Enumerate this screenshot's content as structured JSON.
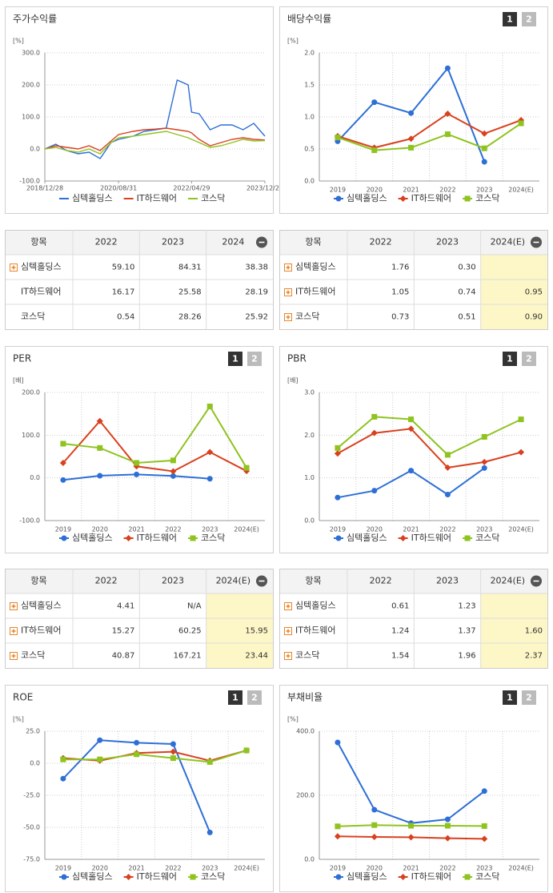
{
  "chart_data": [
    {
      "type": "line",
      "title": "주가수익률",
      "unit": "[%]",
      "x": [
        "2018/12/28",
        "2019/03/29",
        "2019/06/28",
        "2019/09/30",
        "2019/12/30",
        "2020/03/31",
        "2020/06/30",
        "2020/08/31",
        "2020/12/30",
        "2021/03/31",
        "2021/06/30",
        "2021/09/30",
        "2021/12/30",
        "2022/03/31",
        "2022/04/29",
        "2022/06/30",
        "2022/09/30",
        "2022/12/29",
        "2023/03/31",
        "2023/06/30",
        "2023/09/27",
        "2023/12/28"
      ],
      "xlim": [
        "2018/12/28",
        "2023/12/28"
      ],
      "xticks": [
        "2018/12/28",
        "2020/08/31",
        "2022/04/29",
        "2023/12/28"
      ],
      "ylim": [
        -100,
        300
      ],
      "yticks": [
        {
          "value": -100,
          "label": "-100.0"
        },
        {
          "value": 0,
          "label": "0.0"
        },
        {
          "value": 100,
          "label": "100.0"
        },
        {
          "value": 200,
          "label": "200.0"
        },
        {
          "value": 300,
          "label": "300.0"
        }
      ],
      "series": [
        {
          "name": "심텍홀딩스",
          "color": "#2e6fd6",
          "marker": "circle",
          "values": [
            0,
            15,
            -5,
            -15,
            -10,
            -30,
            20,
            30,
            40,
            55,
            60,
            65,
            215,
            200,
            115,
            110,
            60,
            75,
            75,
            60,
            80,
            40
          ]
        },
        {
          "name": "IT하드웨어",
          "color": "#d9411e",
          "marker": "diamond",
          "values": [
            0,
            10,
            5,
            0,
            10,
            -5,
            25,
            45,
            55,
            60,
            62,
            65,
            60,
            55,
            50,
            30,
            10,
            20,
            30,
            35,
            30,
            28
          ]
        },
        {
          "name": "코스닥",
          "color": "#8fc31f",
          "marker": "square",
          "values": [
            0,
            5,
            -5,
            -10,
            0,
            -15,
            20,
            35,
            40,
            45,
            50,
            55,
            45,
            35,
            30,
            20,
            5,
            10,
            20,
            30,
            25,
            26
          ]
        }
      ]
    },
    {
      "type": "line",
      "title": "배당수익률",
      "unit": "[%]",
      "pages": [
        "1",
        "2"
      ],
      "categories": [
        "2019",
        "2020",
        "2021",
        "2022",
        "2023",
        "2024(E)"
      ],
      "ylim": [
        0,
        2
      ],
      "yticks": [
        {
          "value": 0,
          "label": "0.0"
        },
        {
          "value": 0.5,
          "label": "0.5"
        },
        {
          "value": 1,
          "label": "1.0"
        },
        {
          "value": 1.5,
          "label": "1.5"
        },
        {
          "value": 2,
          "label": "2.0"
        }
      ],
      "series": [
        {
          "name": "심텍홀딩스",
          "color": "#2e6fd6",
          "marker": "circle",
          "values": [
            0.62,
            1.23,
            1.06,
            1.76,
            0.3,
            null
          ]
        },
        {
          "name": "IT하드웨어",
          "color": "#d9411e",
          "marker": "diamond",
          "values": [
            0.7,
            0.52,
            0.66,
            1.05,
            0.74,
            0.95
          ]
        },
        {
          "name": "코스닥",
          "color": "#8fc31f",
          "marker": "square",
          "values": [
            0.68,
            0.48,
            0.52,
            0.73,
            0.51,
            0.9
          ]
        }
      ]
    },
    {
      "type": "line",
      "title": "PER",
      "unit": "[배]",
      "pages": [
        "1",
        "2"
      ],
      "categories": [
        "2019",
        "2020",
        "2021",
        "2022",
        "2023",
        "2024(E)"
      ],
      "ylim": [
        -100,
        200
      ],
      "yticks": [
        {
          "value": -100,
          "label": "-100.0"
        },
        {
          "value": 0,
          "label": "0.0"
        },
        {
          "value": 100,
          "label": "100.0"
        },
        {
          "value": 200,
          "label": "200.0"
        }
      ],
      "series": [
        {
          "name": "심텍홀딩스",
          "color": "#2e6fd6",
          "marker": "circle",
          "values": [
            -5,
            5,
            8,
            4.41,
            -2,
            null
          ]
        },
        {
          "name": "IT하드웨어",
          "color": "#d9411e",
          "marker": "diamond",
          "values": [
            35,
            133,
            27,
            15.27,
            60.25,
            15.95
          ]
        },
        {
          "name": "코스닥",
          "color": "#8fc31f",
          "marker": "square",
          "values": [
            80,
            70,
            35,
            40.87,
            167.21,
            23.44
          ]
        }
      ]
    },
    {
      "type": "line",
      "title": "PBR",
      "unit": "[배]",
      "pages": [
        "1",
        "2"
      ],
      "categories": [
        "2019",
        "2020",
        "2021",
        "2022",
        "2023",
        "2024(E)"
      ],
      "ylim": [
        0,
        3
      ],
      "yticks": [
        {
          "value": 0,
          "label": "0.0"
        },
        {
          "value": 1,
          "label": "1.0"
        },
        {
          "value": 2,
          "label": "2.0"
        },
        {
          "value": 3,
          "label": "3.0"
        }
      ],
      "series": [
        {
          "name": "심텍홀딩스",
          "color": "#2e6fd6",
          "marker": "circle",
          "values": [
            0.54,
            0.7,
            1.17,
            0.61,
            1.23,
            null
          ]
        },
        {
          "name": "IT하드웨어",
          "color": "#d9411e",
          "marker": "diamond",
          "values": [
            1.57,
            2.05,
            2.15,
            1.24,
            1.37,
            1.6
          ]
        },
        {
          "name": "코스닥",
          "color": "#8fc31f",
          "marker": "square",
          "values": [
            1.7,
            2.43,
            2.37,
            1.54,
            1.96,
            2.37
          ]
        }
      ]
    },
    {
      "type": "line",
      "title": "ROE",
      "unit": "[%]",
      "pages": [
        "1",
        "2"
      ],
      "categories": [
        "2019",
        "2020",
        "2021",
        "2022",
        "2023",
        "2024(E)"
      ],
      "ylim": [
        -75,
        25
      ],
      "yticks": [
        {
          "value": -75,
          "label": "-75.0"
        },
        {
          "value": -50,
          "label": "-50.0"
        },
        {
          "value": -25,
          "label": "-25.0"
        },
        {
          "value": 0,
          "label": "0.0"
        },
        {
          "value": 25,
          "label": "25.0"
        }
      ],
      "series": [
        {
          "name": "심텍홀딩스",
          "color": "#2e6fd6",
          "marker": "circle",
          "values": [
            -12,
            18,
            16,
            15,
            -54,
            null
          ]
        },
        {
          "name": "IT하드웨어",
          "color": "#d9411e",
          "marker": "diamond",
          "values": [
            4,
            2,
            8,
            9,
            2,
            10
          ]
        },
        {
          "name": "코스닥",
          "color": "#8fc31f",
          "marker": "square",
          "values": [
            3,
            3,
            7,
            4,
            1,
            10
          ]
        }
      ]
    },
    {
      "type": "line",
      "title": "부채비율",
      "unit": "[%]",
      "pages": [
        "1",
        "2"
      ],
      "categories": [
        "2019",
        "2020",
        "2021",
        "2022",
        "2023",
        "2024(E)"
      ],
      "ylim": [
        0,
        400
      ],
      "yticks": [
        {
          "value": 0,
          "label": "0.0"
        },
        {
          "value": 200,
          "label": "200.0"
        },
        {
          "value": 400,
          "label": "400.0"
        }
      ],
      "series": [
        {
          "name": "심텍홀딩스",
          "color": "#2e6fd6",
          "marker": "circle",
          "values": [
            365,
            155,
            113,
            125,
            213,
            null
          ]
        },
        {
          "name": "IT하드웨어",
          "color": "#d9411e",
          "marker": "diamond",
          "values": [
            72,
            70,
            69,
            66,
            64,
            null
          ]
        },
        {
          "name": "코스닥",
          "color": "#8fc31f",
          "marker": "square",
          "values": [
            103,
            107,
            105,
            105,
            104,
            null
          ]
        }
      ]
    }
  ],
  "tables": [
    {
      "header": [
        "항목",
        "2022",
        "2023",
        "2024"
      ],
      "highlight_last": false,
      "rows": [
        {
          "name": "심텍홀딩스",
          "expandable": true,
          "values": [
            "59.10",
            "84.31",
            "38.38"
          ]
        },
        {
          "name": "IT하드웨어",
          "expandable": false,
          "values": [
            "16.17",
            "25.58",
            "28.19"
          ]
        },
        {
          "name": "코스닥",
          "expandable": false,
          "values": [
            "0.54",
            "28.26",
            "25.92"
          ]
        }
      ]
    },
    {
      "header": [
        "항목",
        "2022",
        "2023",
        "2024(E)"
      ],
      "highlight_last": true,
      "rows": [
        {
          "name": "심텍홀딩스",
          "expandable": true,
          "values": [
            "1.76",
            "0.30",
            null
          ]
        },
        {
          "name": "IT하드웨어",
          "expandable": true,
          "values": [
            "1.05",
            "0.74",
            "0.95"
          ]
        },
        {
          "name": "코스닥",
          "expandable": true,
          "values": [
            "0.73",
            "0.51",
            "0.90"
          ]
        }
      ]
    },
    {
      "header": [
        "항목",
        "2022",
        "2023",
        "2024(E)"
      ],
      "highlight_last": true,
      "rows": [
        {
          "name": "심텍홀딩스",
          "expandable": true,
          "values": [
            "4.41",
            "N/A",
            null
          ]
        },
        {
          "name": "IT하드웨어",
          "expandable": true,
          "values": [
            "15.27",
            "60.25",
            "15.95"
          ]
        },
        {
          "name": "코스닥",
          "expandable": true,
          "values": [
            "40.87",
            "167.21",
            "23.44"
          ]
        }
      ]
    },
    {
      "header": [
        "항목",
        "2022",
        "2023",
        "2024(E)"
      ],
      "highlight_last": true,
      "rows": [
        {
          "name": "심텍홀딩스",
          "expandable": true,
          "values": [
            "0.61",
            "1.23",
            null
          ]
        },
        {
          "name": "IT하드웨어",
          "expandable": true,
          "values": [
            "1.24",
            "1.37",
            "1.60"
          ]
        },
        {
          "name": "코스닥",
          "expandable": true,
          "values": [
            "1.54",
            "1.96",
            "2.37"
          ]
        }
      ]
    }
  ]
}
